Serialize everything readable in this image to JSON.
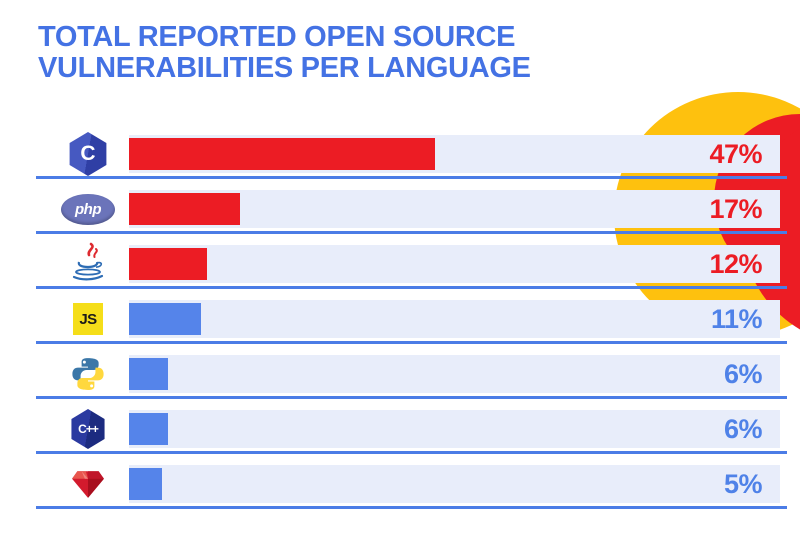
{
  "title": "TOTAL REPORTED OPEN SOURCE\nVULNERABILITIES PER LANGUAGE",
  "colors": {
    "title_blue": "#4472E4",
    "track": "#E8EDFA",
    "underline": "#4B7CE6",
    "bar_red": "#EC1C24",
    "bar_blue": "#5584EA",
    "label_red": "#EC1C24",
    "label_blue": "#4F82E8",
    "decor_yellow": "#FEC10E",
    "decor_red": "#EC1C24"
  },
  "chart_data": {
    "type": "bar",
    "orientation": "horizontal",
    "title": "Total reported open source vulnerabilities per language",
    "categories": [
      "C",
      "PHP",
      "Java",
      "JavaScript",
      "Python",
      "C++",
      "Ruby"
    ],
    "values": [
      47,
      17,
      12,
      11,
      6,
      6,
      5
    ],
    "unit": "%",
    "value_labels": [
      "47%",
      "17%",
      "12%",
      "11%",
      "6%",
      "6%",
      "5%"
    ],
    "xlim": [
      0,
      100
    ],
    "grid": false,
    "legend": "none",
    "note": "Top three languages (C, PHP, Java) use red bars and red labels; remaining languages use blue bars and blue labels. Language logos shown at left of each bar."
  },
  "rows": [
    {
      "language": "C",
      "icon": "c-language-icon",
      "icon_text": "C",
      "value": 47,
      "label": "47%",
      "tone": "red"
    },
    {
      "language": "PHP",
      "icon": "php-icon",
      "icon_text": "php",
      "value": 17,
      "label": "17%",
      "tone": "red"
    },
    {
      "language": "Java",
      "icon": "java-icon",
      "icon_text": "",
      "value": 12,
      "label": "12%",
      "tone": "red"
    },
    {
      "language": "JavaScript",
      "icon": "javascript-icon",
      "icon_text": "JS",
      "value": 11,
      "label": "11%",
      "tone": "blue"
    },
    {
      "language": "Python",
      "icon": "python-icon",
      "icon_text": "",
      "value": 6,
      "label": "6%",
      "tone": "blue"
    },
    {
      "language": "C++",
      "icon": "cpp-icon",
      "icon_text": "C++",
      "value": 6,
      "label": "6%",
      "tone": "blue"
    },
    {
      "language": "Ruby",
      "icon": "ruby-icon",
      "icon_text": "",
      "value": 5,
      "label": "5%",
      "tone": "blue"
    }
  ]
}
